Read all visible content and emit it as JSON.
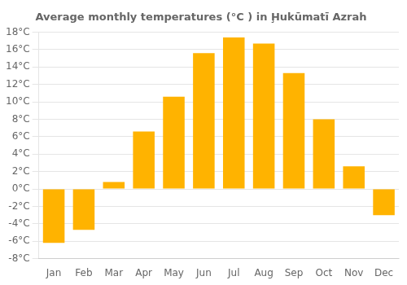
{
  "chart_data": {
    "type": "bar",
    "title": "Average monthly temperatures (°C ) in Ḩukūmatī Azrah",
    "categories": [
      "Jan",
      "Feb",
      "Mar",
      "Apr",
      "May",
      "Jun",
      "Jul",
      "Aug",
      "Sep",
      "Oct",
      "Nov",
      "Dec"
    ],
    "values": [
      -6.2,
      -4.7,
      0.8,
      6.6,
      10.6,
      15.6,
      17.4,
      16.7,
      13.3,
      8.0,
      2.6,
      -3.0
    ],
    "color": "#FFB300",
    "ylim": [
      -8,
      18
    ],
    "yticks": [
      {
        "value": -8,
        "label": "-8°C"
      },
      {
        "value": -6,
        "label": "-6°C"
      },
      {
        "value": -4,
        "label": "-4°C"
      },
      {
        "value": -2,
        "label": "-2°C"
      },
      {
        "value": 0,
        "label": "0°C"
      },
      {
        "value": 2,
        "label": "2°C"
      },
      {
        "value": 4,
        "label": "4°C"
      },
      {
        "value": 6,
        "label": "6°C"
      },
      {
        "value": 8,
        "label": "8°C"
      },
      {
        "value": 10,
        "label": "10°C"
      },
      {
        "value": 12,
        "label": "12°C"
      },
      {
        "value": 14,
        "label": "14°C"
      },
      {
        "value": 16,
        "label": "16°C"
      },
      {
        "value": 18,
        "label": "18°C"
      }
    ],
    "grid": true
  }
}
